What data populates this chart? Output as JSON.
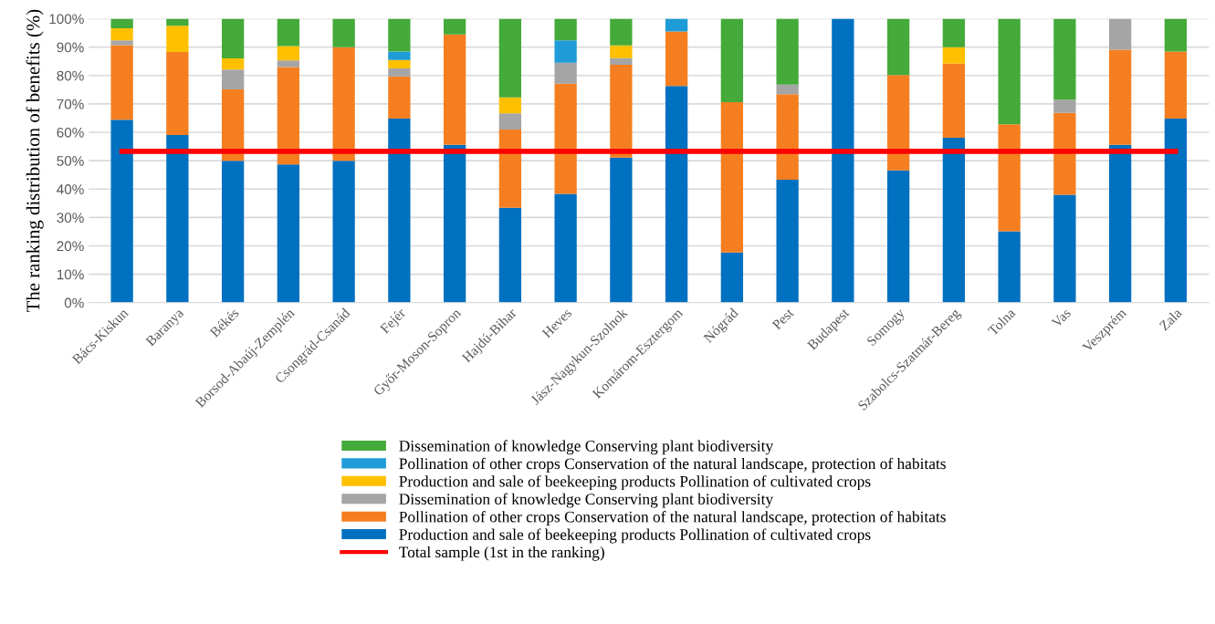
{
  "chart_data": {
    "type": "bar",
    "stacked": true,
    "ylabel": "The ranking distribution of benefits (%)",
    "categories": [
      "Bács-Kiskun",
      "Baranya",
      "Békés",
      "Borsod-Abaúj-Zemplén",
      "Csongrád-Csanád",
      "Fejér",
      "Győr-Moson-Sopron",
      "Hajdú-Bihar",
      "Heves",
      "Jász-Nagykun-Szolnok",
      "Komárom-Esztergom",
      "Nógrád",
      "Pest",
      "Budapest",
      "Somogy",
      "Szabolcs-Szatmár-Bereg",
      "Tolna",
      "Vas",
      "Veszprém",
      "Zala"
    ],
    "series": [
      {
        "name": "Production and sale of beekeeping products Pollination of cultivated crops",
        "color": "#0070c0",
        "values": [
          64.4,
          59.0,
          50.0,
          48.7,
          50.0,
          64.8,
          55.6,
          33.4,
          38.3,
          51.1,
          76.3,
          17.7,
          43.3,
          100,
          46.6,
          58.1,
          25.1,
          38.0,
          55.6,
          64.8
        ]
      },
      {
        "name": "Pollination of other crops Conservation of the natural landscape, protection of habitats",
        "color": "#f57f20",
        "values": [
          26.3,
          29.3,
          25.1,
          34.3,
          40.0,
          14.9,
          38.9,
          27.6,
          38.8,
          32.7,
          19.2,
          52.9,
          30.1,
          0,
          33.6,
          26.1,
          37.7,
          28.8,
          33.5,
          23.6
        ]
      },
      {
        "name": "Dissemination of knowledge Conserving plant biodiversity",
        "color": "#a5a5a5",
        "values": [
          1.7,
          0,
          7.0,
          2.3,
          0,
          2.8,
          0,
          5.7,
          7.4,
          2.3,
          0,
          0,
          3.4,
          0,
          0,
          0,
          0,
          4.7,
          10.9,
          0
        ]
      },
      {
        "name": "Production and sale of beekeeping products Pollination of cultivated crops",
        "color": "#ffc000",
        "values": [
          4.2,
          9.2,
          3.9,
          5.1,
          0,
          3.0,
          0,
          5.6,
          0,
          4.5,
          0,
          0,
          0,
          0,
          0,
          5.8,
          0,
          0,
          0,
          0
        ]
      },
      {
        "name": "Pollination of other crops Conservation of the natural landscape, protection of habitats",
        "color": "#1f9bd7",
        "values": [
          0,
          0,
          0,
          0,
          0,
          2.9,
          0,
          0,
          7.9,
          0,
          4.5,
          0,
          0,
          0,
          0,
          0,
          0,
          0,
          0,
          0
        ]
      },
      {
        "name": "Dissemination of knowledge Conserving plant biodiversity",
        "color": "#44aa3a",
        "values": [
          3.4,
          2.5,
          14.0,
          9.6,
          10.0,
          11.6,
          5.5,
          27.7,
          7.6,
          9.4,
          0,
          29.4,
          23.2,
          0,
          19.8,
          10.0,
          37.2,
          28.5,
          0,
          11.6
        ]
      },
      {
        "name": "Total sample (1st in the ranking)",
        "type": "line",
        "color": "#ff0000",
        "values": [
          53.3,
          53.3,
          53.3,
          53.3,
          53.3,
          53.3,
          53.3,
          53.3,
          53.3,
          53.3,
          53.3,
          53.3,
          53.3,
          53.3,
          53.3,
          53.3,
          53.3,
          53.3,
          53.3,
          53.3
        ]
      }
    ],
    "ylim": [
      0,
      100
    ],
    "yticks": [
      {
        "value": 0,
        "label": "0%"
      },
      {
        "value": 10,
        "label": "10%"
      },
      {
        "value": 20,
        "label": "20%"
      },
      {
        "value": 30,
        "label": "30%"
      },
      {
        "value": 40,
        "label": "40%"
      },
      {
        "value": 50,
        "label": "50%"
      },
      {
        "value": 60,
        "label": "60%"
      },
      {
        "value": 70,
        "label": "70%"
      },
      {
        "value": 80,
        "label": "80%"
      },
      {
        "value": 90,
        "label": "90%"
      },
      {
        "value": 100,
        "label": "100%"
      }
    ],
    "grid": "y",
    "legend": "bottom"
  }
}
